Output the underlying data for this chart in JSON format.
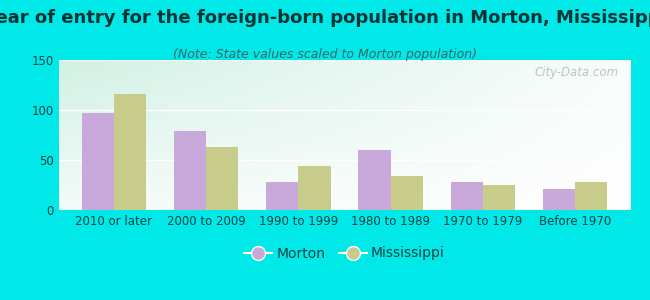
{
  "title": "Year of entry for the foreign-born population in Morton, Mississippi",
  "subtitle": "(Note: State values scaled to Morton population)",
  "categories": [
    "2010 or later",
    "2000 to 2009",
    "1990 to 1999",
    "1980 to 1989",
    "1970 to 1979",
    "Before 1970"
  ],
  "morton_values": [
    97,
    79,
    28,
    60,
    28,
    21
  ],
  "mississippi_values": [
    116,
    63,
    44,
    34,
    25,
    28
  ],
  "morton_color": "#c9a8dc",
  "mississippi_color": "#c8cc8a",
  "ylim": [
    0,
    150
  ],
  "yticks": [
    0,
    50,
    100,
    150
  ],
  "bar_width": 0.35,
  "background_outer": "#00e8e8",
  "title_fontsize": 13,
  "title_color": "#003333",
  "subtitle_fontsize": 9,
  "subtitle_color": "#336666",
  "tick_fontsize": 8.5,
  "tick_color": "#004444",
  "legend_fontsize": 10,
  "watermark_text": "City-Data.com",
  "watermark_color": "#aabcbc"
}
